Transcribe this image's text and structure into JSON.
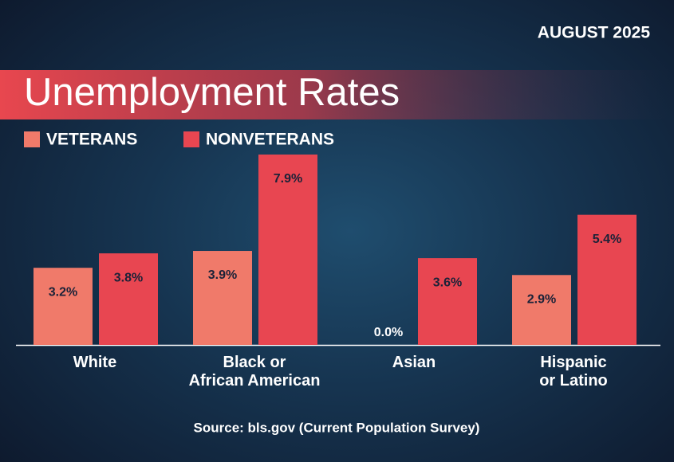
{
  "date": "AUGUST 2025",
  "chart_data": {
    "type": "bar",
    "title": "Unemployment Rates",
    "categories": [
      "White",
      "Black or\nAfrican American",
      "Asian",
      "Hispanic\nor Latino"
    ],
    "series": [
      {
        "name": "VETERANS",
        "color": "#f07a6a",
        "values": [
          3.2,
          3.9,
          0.0,
          2.9
        ],
        "value_labels": [
          "3.2%",
          "3.9%",
          "0.0%",
          "2.9%"
        ]
      },
      {
        "name": "NONVETERANS",
        "color": "#e84651",
        "values": [
          3.8,
          7.9,
          3.6,
          5.4
        ],
        "value_labels": [
          "3.8%",
          "7.9%",
          "3.6%",
          "5.4%"
        ]
      }
    ]
  },
  "source": "Source: bls.gov (Current Population Survey)"
}
